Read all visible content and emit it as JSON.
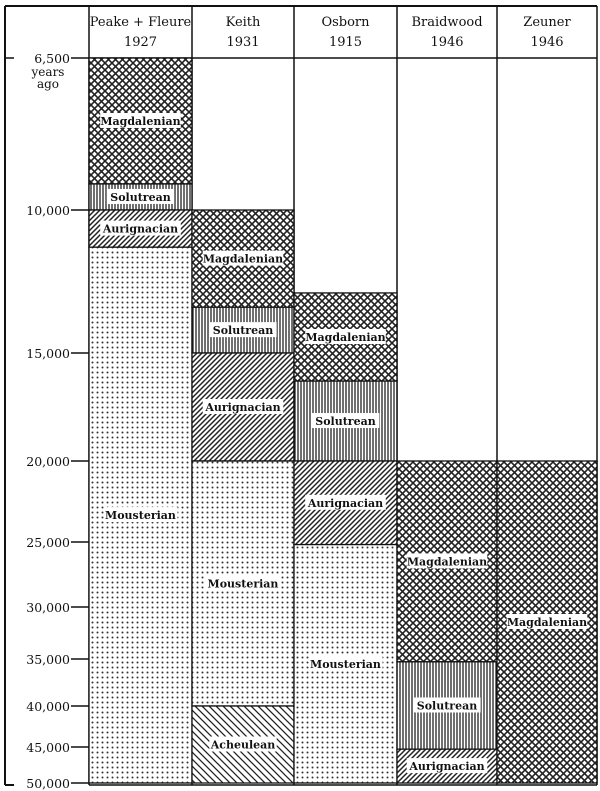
{
  "chart_data": {
    "type": "table",
    "subtype": "stacked-interval-columns",
    "y_axis": {
      "unit_label": [
        "years",
        "ago"
      ],
      "ticks": [
        6500,
        10000,
        15000,
        20000,
        25000,
        30000,
        35000,
        40000,
        45000,
        50000
      ],
      "tick_labels": [
        "6,500",
        "10,000",
        "15,000",
        "20,000",
        "25,000",
        "30,000",
        "35,000",
        "40,000",
        "45,000",
        "50,000"
      ],
      "range": [
        6500,
        50000
      ],
      "scale": "non-linear (compressed toward older dates)",
      "direction": "older downward"
    },
    "patterns": {
      "Magdalenian": "crosshatch",
      "Solutrean": "vertical-lines",
      "Aurignacian": "diagonal-forward",
      "Mousterian": "dots",
      "Acheulean": "diagonal-back"
    },
    "columns": [
      {
        "name": "Peake + Fleure",
        "year": "1927",
        "periods": [
          {
            "culture": "Magdalenian",
            "from": 6500,
            "to": 9400
          },
          {
            "culture": "Solutrean",
            "from": 9400,
            "to": 10000
          },
          {
            "culture": "Aurignacian",
            "from": 10000,
            "to": 11300
          },
          {
            "culture": "Mousterian",
            "from": 11300,
            "to": 50000
          }
        ]
      },
      {
        "name": "Keith",
        "year": "1931",
        "periods": [
          {
            "culture": "Magdalenian",
            "from": 10000,
            "to": 13400
          },
          {
            "culture": "Solutrean",
            "from": 13400,
            "to": 15000
          },
          {
            "culture": "Aurignacian",
            "from": 15000,
            "to": 20000
          },
          {
            "culture": "Mousterian",
            "from": 20000,
            "to": 40000
          },
          {
            "culture": "Acheulean",
            "from": 40000,
            "to": 50000
          }
        ]
      },
      {
        "name": "Osborn",
        "year": "1915",
        "periods": [
          {
            "culture": "Magdalenian",
            "from": 12900,
            "to": 16300
          },
          {
            "culture": "Solutrean",
            "from": 16300,
            "to": 20000
          },
          {
            "culture": "Aurignacian",
            "from": 20000,
            "to": 25200
          },
          {
            "culture": "Mousterian",
            "from": 25200,
            "to": 50000
          }
        ]
      },
      {
        "name": "Braidwood",
        "year": "1946",
        "periods": [
          {
            "culture": "Magdalenian",
            "from": 20000,
            "to": 35300
          },
          {
            "culture": "Solutrean",
            "from": 35300,
            "to": 45300
          },
          {
            "culture": "Aurignacian",
            "from": 45300,
            "to": 50000
          }
        ]
      },
      {
        "name": "Zeuner",
        "year": "1946",
        "periods": [
          {
            "culture": "Magdalenian",
            "from": 20000,
            "to": 50000
          }
        ]
      }
    ]
  }
}
